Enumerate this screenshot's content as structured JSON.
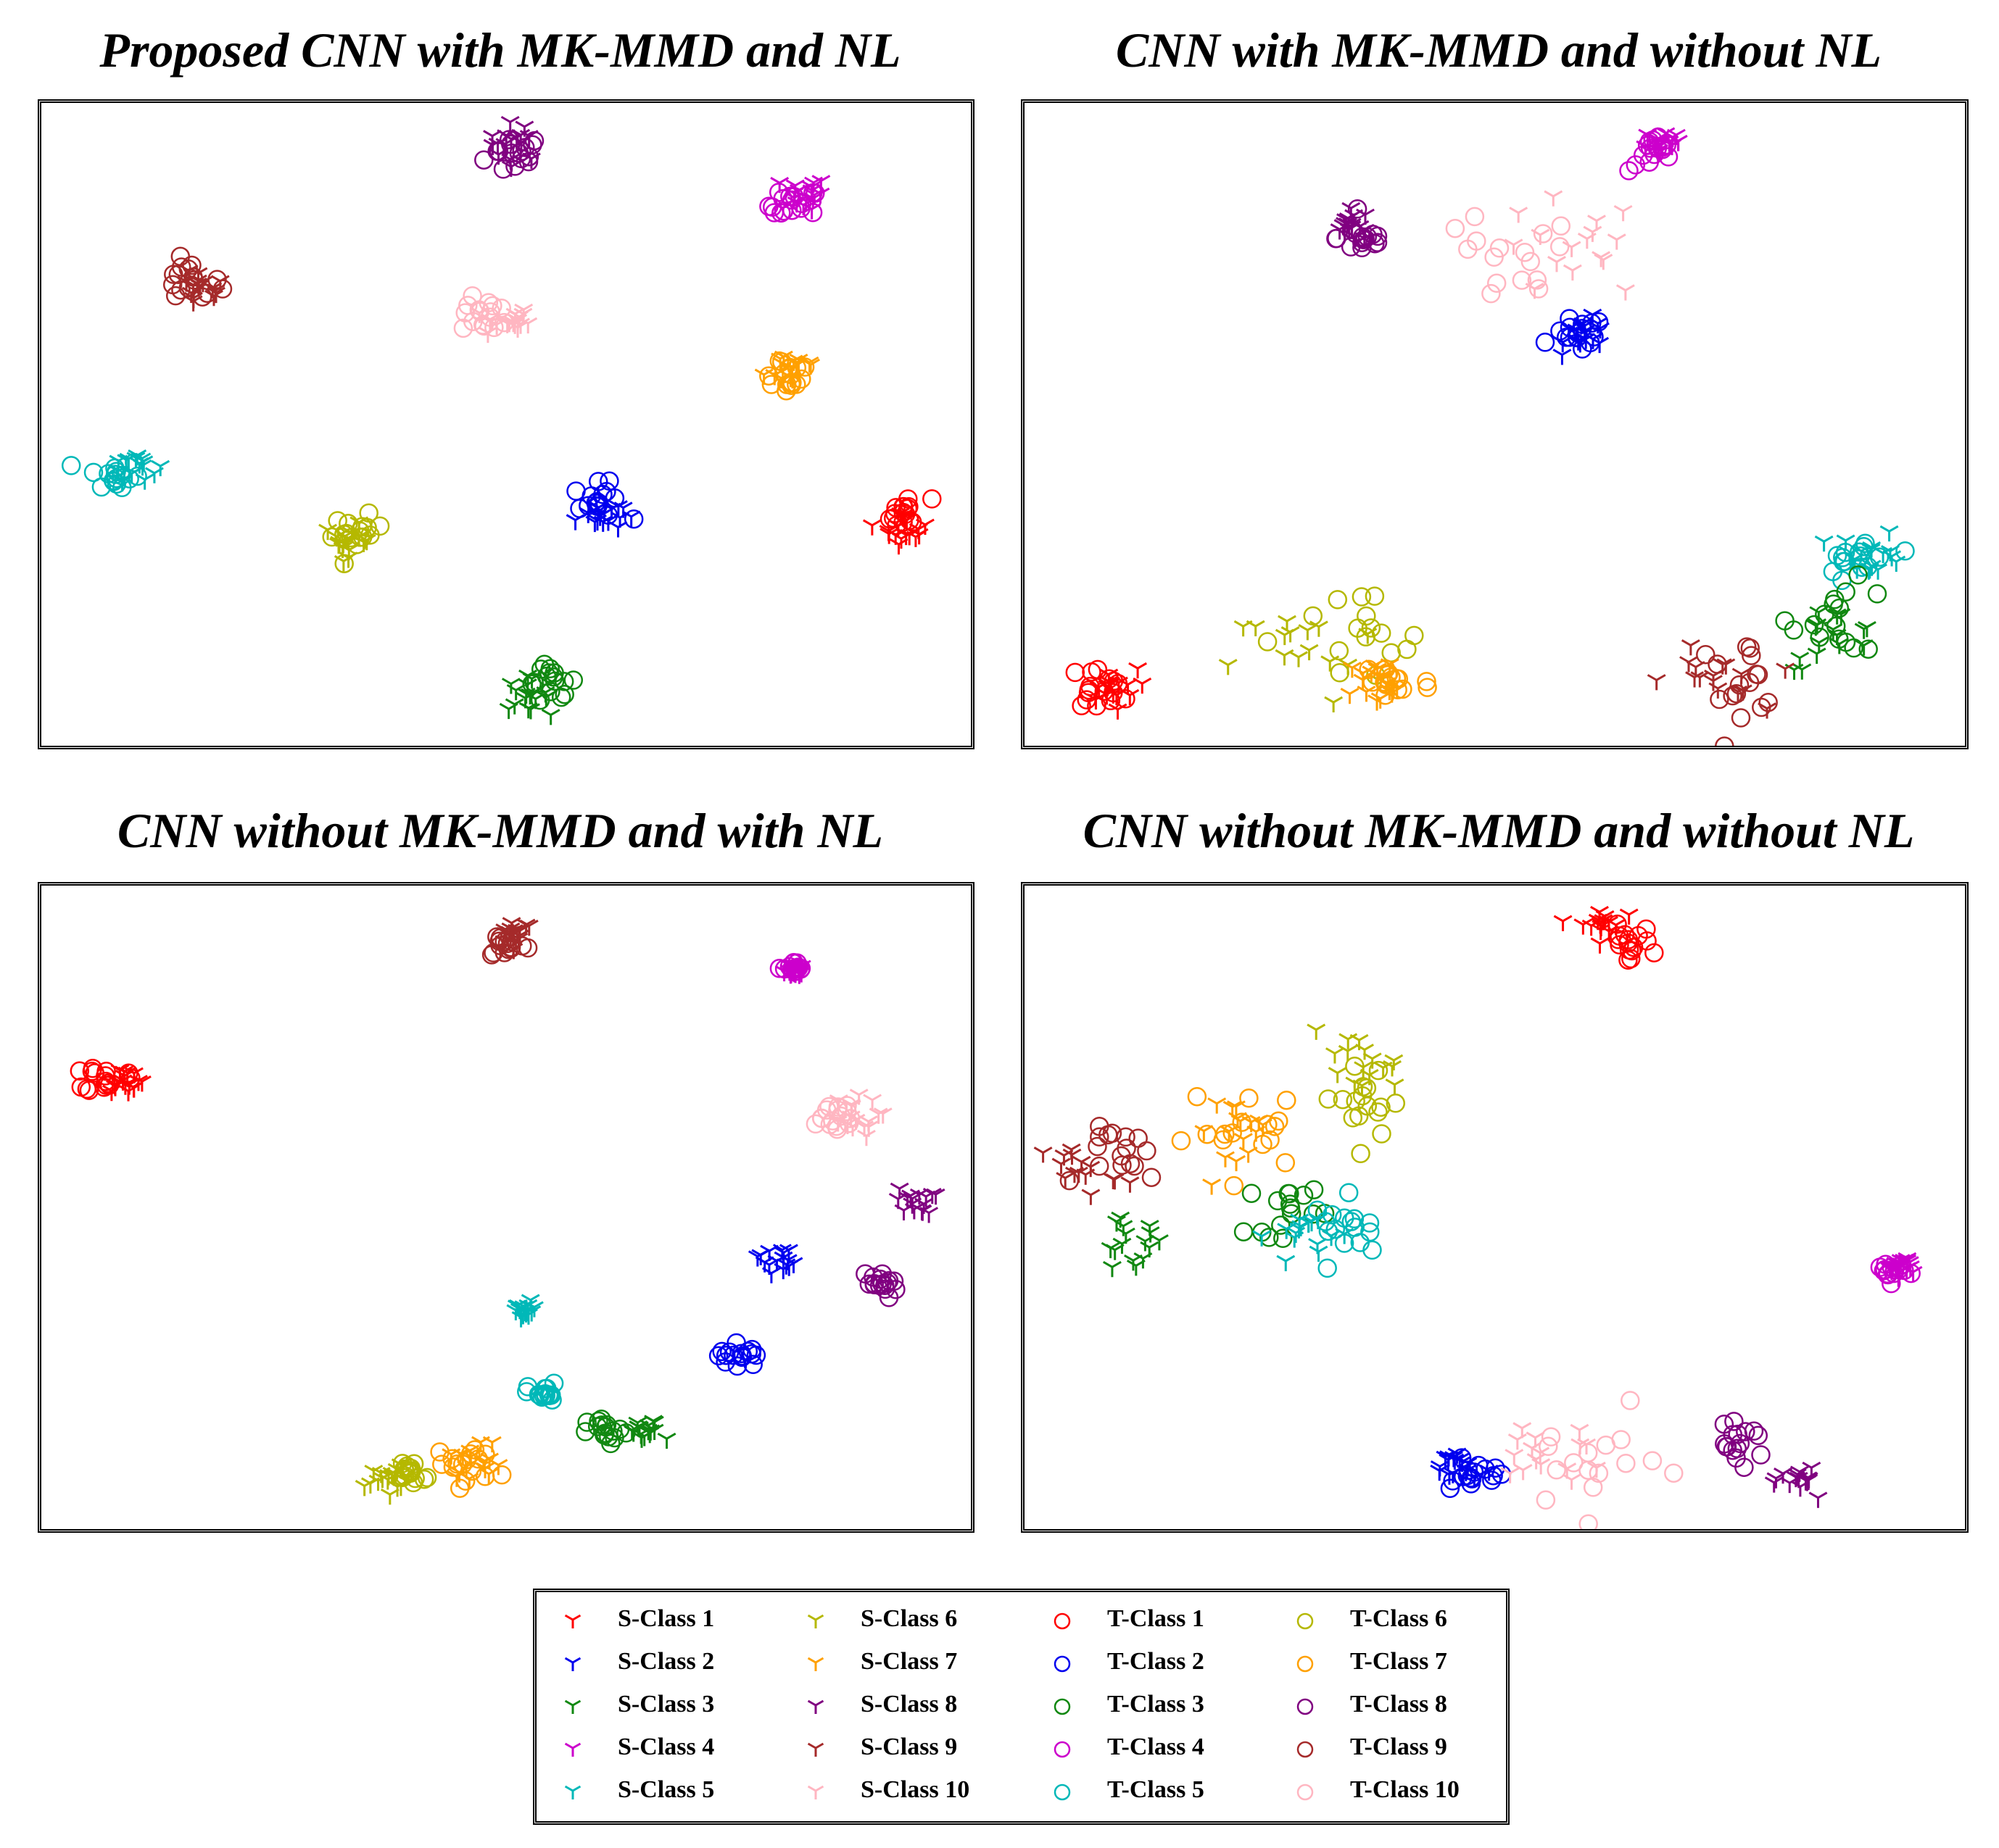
{
  "figure": {
    "panel_titles": [
      "Proposed CNN with MK-MMD and NL",
      "CNN with MK-MMD and without NL",
      "CNN without MK-MMD and with NL",
      "CNN without MK-MMD and without NL"
    ]
  },
  "colors": {
    "class1": "#ff0000",
    "class2": "#0000ee",
    "class3": "#118811",
    "class4": "#cc00cc",
    "class5": "#00b8b8",
    "class6": "#b5b800",
    "class7": "#ffa000",
    "class8": "#800080",
    "class9": "#a52a2a",
    "class10": "#ffb6c1"
  },
  "chart_data": [
    {
      "type": "scatter",
      "title": "Proposed CNN with MK-MMD and NL",
      "xlim": [
        0,
        100
      ],
      "ylim": [
        0,
        100
      ],
      "grid": false,
      "axes_visible": false,
      "clusters": [
        {
          "cls": 8,
          "sx": 51,
          "sy": 94,
          "tx": 51,
          "ty": 92,
          "spread": 3
        },
        {
          "cls": 4,
          "sx": 82,
          "sy": 86,
          "tx": 81,
          "ty": 84,
          "spread": 2.5
        },
        {
          "cls": 9,
          "sx": 17,
          "sy": 71,
          "tx": 16,
          "ty": 72,
          "spread": 3
        },
        {
          "cls": 10,
          "sx": 50,
          "sy": 66,
          "tx": 48,
          "ty": 67,
          "spread": 2.5
        },
        {
          "cls": 7,
          "sx": 81,
          "sy": 59,
          "tx": 80,
          "ty": 58,
          "spread": 3
        },
        {
          "cls": 5,
          "sx": 10,
          "sy": 44,
          "tx": 8,
          "ty": 42,
          "spread": 2.5
        },
        {
          "cls": 2,
          "sx": 60,
          "sy": 36,
          "tx": 60,
          "ty": 38,
          "spread": 2.5
        },
        {
          "cls": 1,
          "sx": 93,
          "sy": 34,
          "tx": 93,
          "ty": 36,
          "spread": 2.5
        },
        {
          "cls": 6,
          "sx": 33,
          "sy": 32,
          "tx": 34,
          "ty": 33,
          "spread": 2.5
        },
        {
          "cls": 3,
          "sx": 52,
          "sy": 8,
          "tx": 55,
          "ty": 10,
          "spread": 2.5
        }
      ]
    },
    {
      "type": "scatter",
      "title": "CNN with MK-MMD and without NL",
      "xlim": [
        0,
        100
      ],
      "ylim": [
        0,
        100
      ],
      "grid": false,
      "axes_visible": false,
      "clusters": [
        {
          "cls": 4,
          "sx": 68,
          "sy": 94,
          "tx": 67,
          "ty": 92,
          "spread": 2.5
        },
        {
          "cls": 8,
          "sx": 35,
          "sy": 81,
          "tx": 36,
          "ty": 79,
          "spread": 2.5
        },
        {
          "cls": 10,
          "sx": 58,
          "sy": 77,
          "tx": 50,
          "ty": 74,
          "spread": 8
        },
        {
          "cls": 2,
          "sx": 60,
          "sy": 64,
          "tx": 59,
          "ty": 64,
          "spread": 2.5
        },
        {
          "cls": 5,
          "sx": 90,
          "sy": 30,
          "tx": 89,
          "ty": 29,
          "spread": 3.5
        },
        {
          "cls": 3,
          "sx": 86,
          "sy": 17,
          "tx": 87,
          "ty": 20,
          "spread": 5
        },
        {
          "cls": 9,
          "sx": 73,
          "sy": 10,
          "tx": 76,
          "ty": 11,
          "spread": 5
        },
        {
          "cls": 1,
          "sx": 9,
          "sy": 9,
          "tx": 8,
          "ty": 9,
          "spread": 3
        },
        {
          "cls": 6,
          "sx": 30,
          "sy": 14,
          "tx": 35,
          "ty": 16,
          "spread": 8
        },
        {
          "cls": 7,
          "sx": 38,
          "sy": 10,
          "tx": 39,
          "ty": 10,
          "spread": 4
        }
      ]
    },
    {
      "type": "scatter",
      "title": "CNN without MK-MMD and with NL",
      "xlim": [
        0,
        100
      ],
      "ylim": [
        0,
        100
      ],
      "grid": false,
      "axes_visible": false,
      "clusters": [
        {
          "cls": 9,
          "sx": 51,
          "sy": 93,
          "tx": 50,
          "ty": 91,
          "spread": 2
        },
        {
          "cls": 4,
          "sx": 81,
          "sy": 87,
          "tx": 81,
          "ty": 87,
          "spread": 1
        },
        {
          "cls": 1,
          "sx": 9,
          "sy": 70,
          "tx": 7,
          "ty": 70,
          "spread": 2
        },
        {
          "cls": 10,
          "sx": 87,
          "sy": 64,
          "tx": 85,
          "ty": 64,
          "spread": 3
        },
        {
          "cls": 8,
          "sx": 94,
          "sy": 51,
          "tx": 90,
          "ty": 38,
          "spread": 2
        },
        {
          "cls": 2,
          "sx": 79,
          "sy": 42,
          "tx": 75,
          "ty": 27,
          "spread": 2
        },
        {
          "cls": 5,
          "sx": 52,
          "sy": 34,
          "tx": 54,
          "ty": 21,
          "spread": 1.5
        },
        {
          "cls": 3,
          "sx": 65,
          "sy": 15,
          "tx": 61,
          "ty": 15,
          "spread": 2
        },
        {
          "cls": 6,
          "sx": 37,
          "sy": 8,
          "tx": 40,
          "ty": 9,
          "spread": 2
        },
        {
          "cls": 7,
          "sx": 47,
          "sy": 11,
          "tx": 46,
          "ty": 10,
          "spread": 3
        }
      ]
    },
    {
      "type": "scatter",
      "title": "CNN without MK-MMD and without NL",
      "xlim": [
        0,
        100
      ],
      "ylim": [
        0,
        100
      ],
      "grid": false,
      "axes_visible": false,
      "clusters": [
        {
          "cls": 1,
          "sx": 61,
          "sy": 94,
          "tx": 64,
          "ty": 91,
          "spread": 2.5
        },
        {
          "cls": 6,
          "sx": 35,
          "sy": 72,
          "tx": 37,
          "ty": 67,
          "spread": 5
        },
        {
          "cls": 7,
          "sx": 24,
          "sy": 62,
          "tx": 24,
          "ty": 62,
          "spread": 6
        },
        {
          "cls": 9,
          "sx": 6,
          "sy": 56,
          "tx": 11,
          "ty": 58,
          "spread": 4
        },
        {
          "cls": 3,
          "sx": 11,
          "sy": 44,
          "tx": 28,
          "ty": 50,
          "spread": 4
        },
        {
          "cls": 5,
          "sx": 30,
          "sy": 46,
          "tx": 35,
          "ty": 47,
          "spread": 4
        },
        {
          "cls": 4,
          "sx": 93,
          "sy": 41,
          "tx": 92,
          "ty": 40,
          "spread": 1.5
        },
        {
          "cls": 2,
          "sx": 46,
          "sy": 10,
          "tx": 48,
          "ty": 8,
          "spread": 2.5
        },
        {
          "cls": 10,
          "sx": 55,
          "sy": 12,
          "tx": 60,
          "ty": 10,
          "spread": 7
        },
        {
          "cls": 8,
          "sx": 83,
          "sy": 8,
          "tx": 76,
          "ty": 13,
          "spread": 2.5
        }
      ]
    }
  ],
  "legend": {
    "items": [
      {
        "label": "S-Class 1",
        "marker": "tri",
        "color": "#ff0000"
      },
      {
        "label": "S-Class 2",
        "marker": "tri",
        "color": "#0000ee"
      },
      {
        "label": "S-Class 3",
        "marker": "tri",
        "color": "#118811"
      },
      {
        "label": "S-Class 4",
        "marker": "tri",
        "color": "#cc00cc"
      },
      {
        "label": "S-Class 5",
        "marker": "tri",
        "color": "#00b8b8"
      },
      {
        "label": "S-Class 6",
        "marker": "tri",
        "color": "#b5b800"
      },
      {
        "label": "S-Class 7",
        "marker": "tri",
        "color": "#ffa000"
      },
      {
        "label": "S-Class 8",
        "marker": "tri",
        "color": "#800080"
      },
      {
        "label": "S-Class 9",
        "marker": "tri",
        "color": "#a52a2a"
      },
      {
        "label": "S-Class 10",
        "marker": "tri",
        "color": "#ffb6c1"
      },
      {
        "label": "T-Class 1",
        "marker": "circle",
        "color": "#ff0000"
      },
      {
        "label": "T-Class 2",
        "marker": "circle",
        "color": "#0000ee"
      },
      {
        "label": "T-Class 3",
        "marker": "circle",
        "color": "#118811"
      },
      {
        "label": "T-Class 4",
        "marker": "circle",
        "color": "#cc00cc"
      },
      {
        "label": "T-Class 5",
        "marker": "circle",
        "color": "#00b8b8"
      },
      {
        "label": "T-Class 6",
        "marker": "circle",
        "color": "#b5b800"
      },
      {
        "label": "T-Class 7",
        "marker": "circle",
        "color": "#ffa000"
      },
      {
        "label": "T-Class 8",
        "marker": "circle",
        "color": "#800080"
      },
      {
        "label": "T-Class 9",
        "marker": "circle",
        "color": "#a52a2a"
      },
      {
        "label": "T-Class 10",
        "marker": "circle",
        "color": "#ffb6c1"
      }
    ]
  }
}
